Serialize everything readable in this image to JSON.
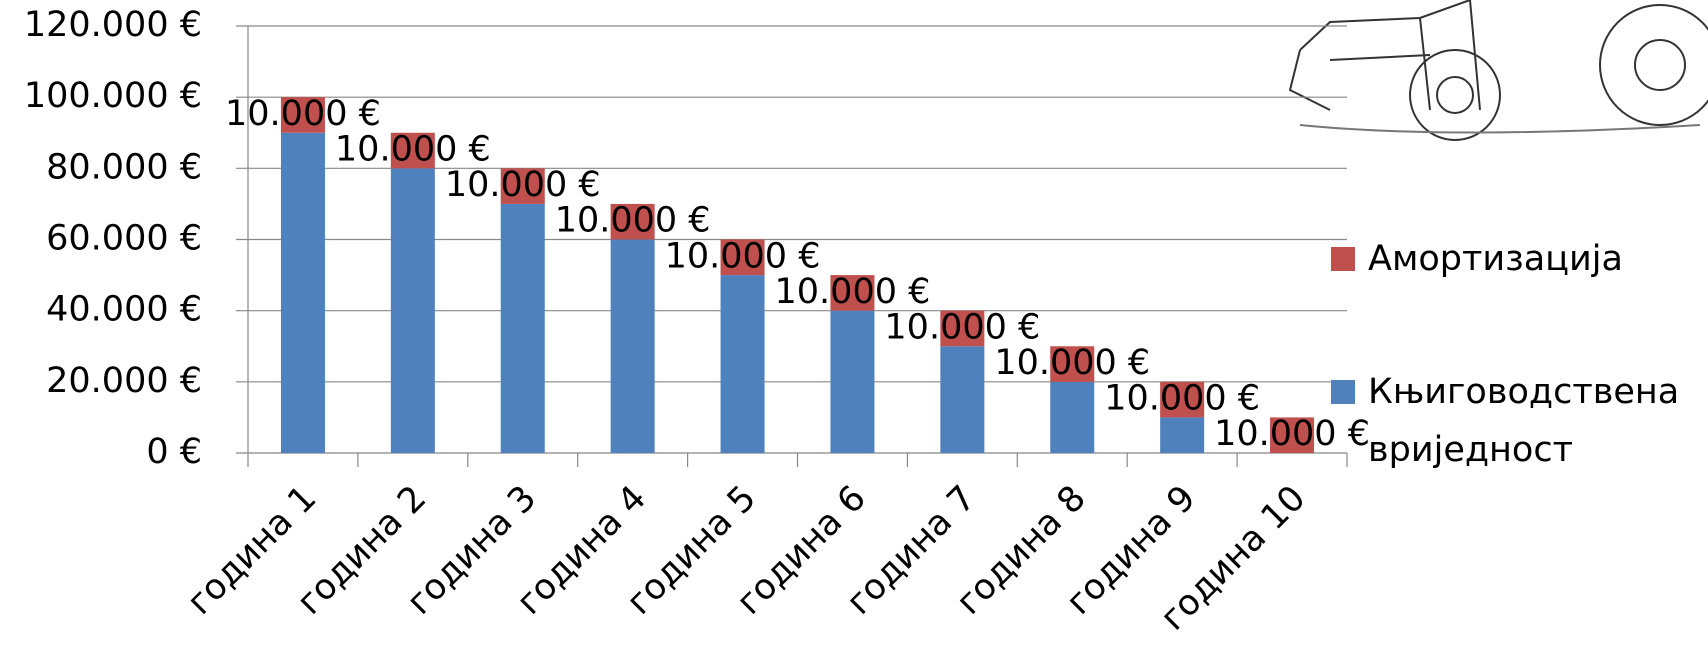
{
  "chart_data": {
    "type": "stacked_bar",
    "categories": [
      "година 1",
      "година 2",
      "година 3",
      "година 4",
      "година 5",
      "година 6",
      "година 7",
      "година 8",
      "година 9",
      "година 10"
    ],
    "series": [
      {
        "name": "Књиговодствена вриједност",
        "color": "#4f81bd",
        "values": [
          90000,
          80000,
          70000,
          60000,
          50000,
          40000,
          30000,
          20000,
          10000,
          0
        ]
      },
      {
        "name": "Амортизација",
        "color": "#c0504d",
        "values": [
          10000,
          10000,
          10000,
          10000,
          10000,
          10000,
          10000,
          10000,
          10000,
          10000
        ],
        "value_labels": [
          "10.000 €",
          "10.000 €",
          "10.000 €",
          "10.000 €",
          "10.000 €",
          "10.000 €",
          "10.000 €",
          "10.000 €",
          "10.000 €",
          "10.000 €"
        ]
      }
    ],
    "ylim": [
      0,
      120000
    ],
    "yticks": [
      {
        "value": 0,
        "label": "0 €"
      },
      {
        "value": 20000,
        "label": "20.000 €"
      },
      {
        "value": 40000,
        "label": "40.000 €"
      },
      {
        "value": 60000,
        "label": "60.000 €"
      },
      {
        "value": 80000,
        "label": "80.000 €"
      },
      {
        "value": 100000,
        "label": "100.000 €"
      },
      {
        "value": 120000,
        "label": "120.000 €"
      }
    ],
    "grid": true,
    "legend": "right"
  }
}
